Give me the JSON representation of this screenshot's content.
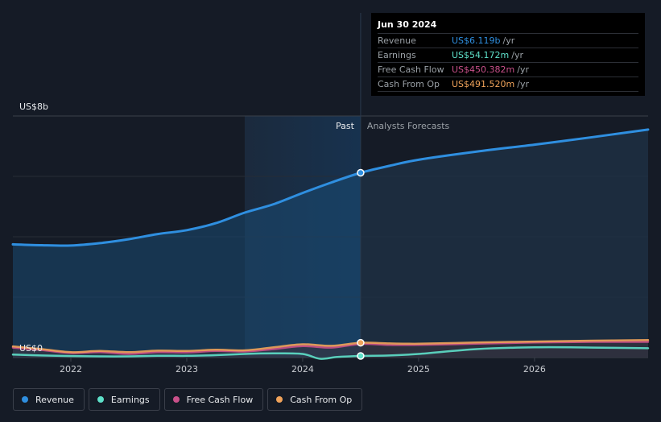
{
  "chart_data": {
    "type": "line",
    "y_top_label": "US$8b",
    "y_bottom_label": "US$0",
    "ylim": [
      0,
      8
    ],
    "xlim": [
      2021.5,
      2026.98
    ],
    "x_ticks": [
      "2022",
      "2023",
      "2024",
      "2025",
      "2026"
    ],
    "divider_x": 2024.5,
    "forecast_shade_start": 2023.5,
    "past_label": "Past",
    "forecast_label": "Analysts Forecasts",
    "series": [
      {
        "name": "Revenue",
        "color": "#2f8fe0",
        "points": [
          [
            2021.5,
            3.75
          ],
          [
            2021.75,
            3.72
          ],
          [
            2022.0,
            3.71
          ],
          [
            2022.25,
            3.79
          ],
          [
            2022.5,
            3.92
          ],
          [
            2022.75,
            4.09
          ],
          [
            2023.0,
            4.22
          ],
          [
            2023.25,
            4.45
          ],
          [
            2023.5,
            4.8
          ],
          [
            2023.75,
            5.08
          ],
          [
            2024.0,
            5.45
          ],
          [
            2024.25,
            5.8
          ],
          [
            2024.5,
            6.119
          ],
          [
            2024.75,
            6.35
          ],
          [
            2025.0,
            6.55
          ],
          [
            2025.5,
            6.82
          ],
          [
            2026.0,
            7.05
          ],
          [
            2026.5,
            7.3
          ],
          [
            2026.98,
            7.55
          ]
        ]
      },
      {
        "name": "Earnings",
        "color": "#5ee0c9",
        "points": [
          [
            2021.5,
            0.1
          ],
          [
            2021.75,
            0.07
          ],
          [
            2022.0,
            0.05
          ],
          [
            2022.25,
            0.04
          ],
          [
            2022.5,
            0.04
          ],
          [
            2022.75,
            0.06
          ],
          [
            2023.0,
            0.06
          ],
          [
            2023.25,
            0.08
          ],
          [
            2023.5,
            0.12
          ],
          [
            2023.75,
            0.14
          ],
          [
            2024.0,
            0.12
          ],
          [
            2024.15,
            -0.04
          ],
          [
            2024.3,
            0.02
          ],
          [
            2024.5,
            0.054
          ],
          [
            2024.75,
            0.07
          ],
          [
            2025.0,
            0.12
          ],
          [
            2025.5,
            0.28
          ],
          [
            2026.0,
            0.34
          ],
          [
            2026.5,
            0.33
          ],
          [
            2026.98,
            0.31
          ]
        ]
      },
      {
        "name": "Free Cash Flow",
        "color": "#c9508a",
        "points": [
          [
            2021.5,
            0.33
          ],
          [
            2021.75,
            0.25
          ],
          [
            2022.0,
            0.15
          ],
          [
            2022.25,
            0.18
          ],
          [
            2022.5,
            0.12
          ],
          [
            2022.75,
            0.18
          ],
          [
            2023.0,
            0.17
          ],
          [
            2023.25,
            0.22
          ],
          [
            2023.5,
            0.2
          ],
          [
            2023.75,
            0.28
          ],
          [
            2024.0,
            0.38
          ],
          [
            2024.25,
            0.33
          ],
          [
            2024.5,
            0.45
          ],
          [
            2024.75,
            0.42
          ],
          [
            2025.0,
            0.42
          ],
          [
            2025.5,
            0.46
          ],
          [
            2026.0,
            0.5
          ],
          [
            2026.5,
            0.52
          ],
          [
            2026.98,
            0.52
          ]
        ]
      },
      {
        "name": "Cash From Op",
        "color": "#f0a35a",
        "points": [
          [
            2021.5,
            0.37
          ],
          [
            2021.75,
            0.28
          ],
          [
            2022.0,
            0.18
          ],
          [
            2022.25,
            0.22
          ],
          [
            2022.5,
            0.18
          ],
          [
            2022.75,
            0.23
          ],
          [
            2023.0,
            0.22
          ],
          [
            2023.25,
            0.26
          ],
          [
            2023.5,
            0.24
          ],
          [
            2023.75,
            0.34
          ],
          [
            2024.0,
            0.44
          ],
          [
            2024.25,
            0.39
          ],
          [
            2024.5,
            0.4915
          ],
          [
            2024.75,
            0.47
          ],
          [
            2025.0,
            0.46
          ],
          [
            2025.5,
            0.5
          ],
          [
            2026.0,
            0.53
          ],
          [
            2026.5,
            0.56
          ],
          [
            2026.98,
            0.58
          ]
        ]
      }
    ]
  },
  "tooltip": {
    "date": "Jun 30 2024",
    "rows": [
      {
        "name": "Revenue",
        "value": "US$6.119b",
        "unit": "/yr",
        "color": "#2f8fe0"
      },
      {
        "name": "Earnings",
        "value": "US$54.172m",
        "unit": "/yr",
        "color": "#5ee0c9"
      },
      {
        "name": "Free Cash Flow",
        "value": "US$450.382m",
        "unit": "/yr",
        "color": "#c9508a"
      },
      {
        "name": "Cash From Op",
        "value": "US$491.520m",
        "unit": "/yr",
        "color": "#f0a35a"
      }
    ]
  },
  "legend": [
    {
      "label": "Revenue",
      "color": "#2f8fe0"
    },
    {
      "label": "Earnings",
      "color": "#5ee0c9"
    },
    {
      "label": "Free Cash Flow",
      "color": "#c9508a"
    },
    {
      "label": "Cash From Op",
      "color": "#f0a35a"
    }
  ]
}
